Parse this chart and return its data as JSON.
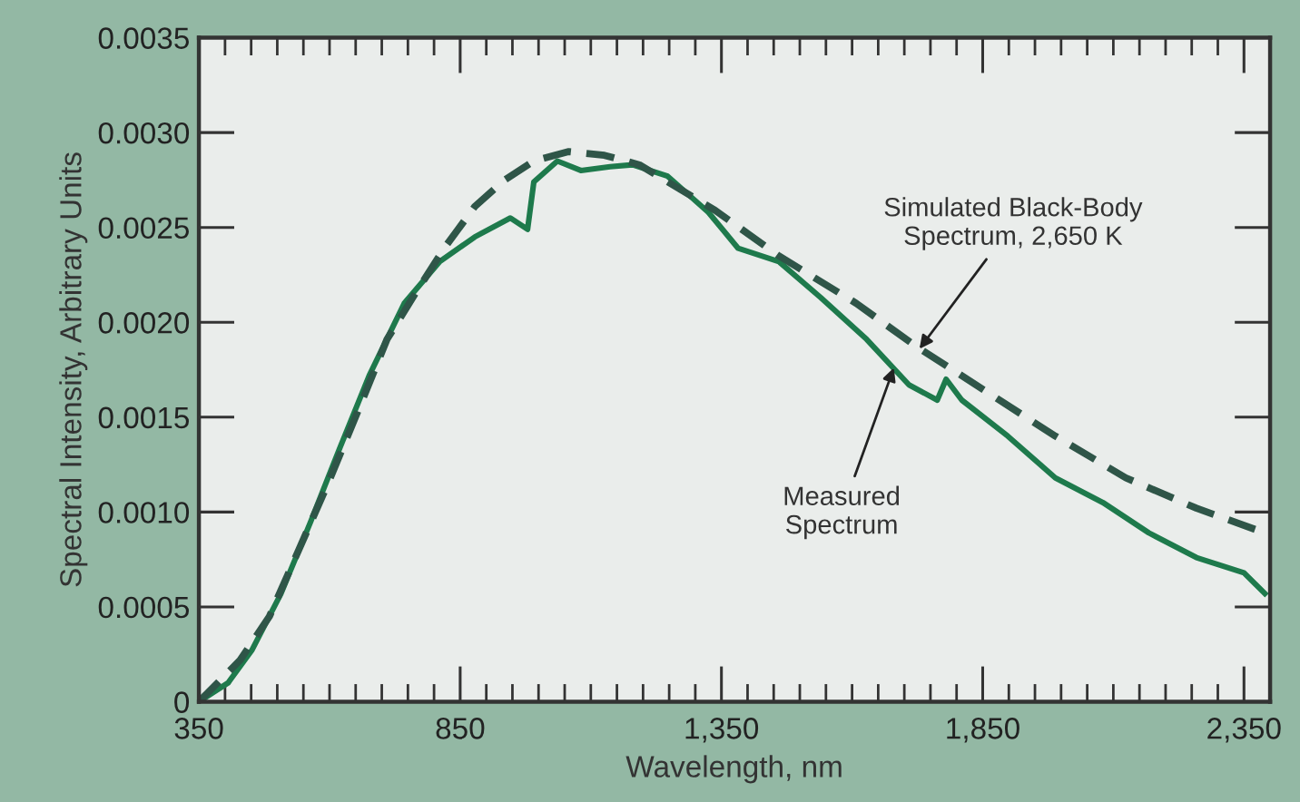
{
  "chart_data": {
    "type": "line",
    "xlabel": "Wavelength, nm",
    "ylabel": "Spectral Intensity, Arbitrary Units",
    "xlim": [
      350,
      2400
    ],
    "ylim": [
      0,
      0.0035
    ],
    "xticks": [
      {
        "value": 350,
        "label": "350"
      },
      {
        "value": 850,
        "label": "850"
      },
      {
        "value": 1350,
        "label": "1,350"
      },
      {
        "value": 1850,
        "label": "1,850"
      },
      {
        "value": 2350,
        "label": "2,350"
      }
    ],
    "yticks": [
      {
        "value": 0,
        "label": "0"
      },
      {
        "value": 0.0005,
        "label": "0.0005"
      },
      {
        "value": 0.001,
        "label": "0.0010"
      },
      {
        "value": 0.0015,
        "label": "0.0015"
      },
      {
        "value": 0.002,
        "label": "0.0020"
      },
      {
        "value": 0.0025,
        "label": "0.0025"
      },
      {
        "value": 0.003,
        "label": "0.0030"
      },
      {
        "value": 0.0035,
        "label": "0.0035"
      }
    ],
    "grid": false,
    "legend": false,
    "marker": "none",
    "series": [
      {
        "color": "#1e7a4c",
        "line_style": "solid",
        "x": [
          350,
          406,
          451,
          507,
          564,
          620,
          676,
          743,
          811,
          878,
          946,
          979,
          991,
          1036,
          1081,
          1137,
          1180,
          1247,
          1325,
          1382,
          1460,
          1540,
          1628,
          1709,
          1763,
          1780,
          1810,
          1898,
          1989,
          2080,
          2168,
          2259,
          2350,
          2390
        ],
        "values": [
          0,
          0.0001,
          0.00027,
          0.00057,
          0.00095,
          0.00134,
          0.00172,
          0.0021,
          0.00232,
          0.00245,
          0.00255,
          0.00249,
          0.00274,
          0.00285,
          0.0028,
          0.00282,
          0.00283,
          0.00277,
          0.00258,
          0.00239,
          0.00232,
          0.00213,
          0.00191,
          0.00167,
          0.00159,
          0.0017,
          0.00159,
          0.0014,
          0.00118,
          0.00105,
          0.00089,
          0.00076,
          0.00068,
          0.00057
        ]
      },
      {
        "color": "#2f5548",
        "line_style": "dashed",
        "x": [
          350,
          429,
          485,
          541,
          597,
          654,
          710,
          766,
          822,
          878,
          935,
          991,
          1058,
          1126,
          1193,
          1338,
          1460,
          1608,
          1719,
          1854,
          1989,
          2124,
          2259,
          2390
        ],
        "values": [
          0,
          0.00022,
          0.00045,
          0.0008,
          0.00115,
          0.00153,
          0.00191,
          0.00216,
          0.0024,
          0.00261,
          0.00275,
          0.00285,
          0.0029,
          0.00288,
          0.00283,
          0.00259,
          0.00235,
          0.0021,
          0.00188,
          0.00164,
          0.0014,
          0.00118,
          0.00102,
          0.00089
        ]
      }
    ],
    "annotations": [
      {
        "text": "Simulated Black-Body\nSpectrum, 2,650 K",
        "x": 1729,
        "y": 0.00186
      },
      {
        "text": "Measured\nSpectrum",
        "x": 1680,
        "y": 0.00176
      }
    ]
  }
}
